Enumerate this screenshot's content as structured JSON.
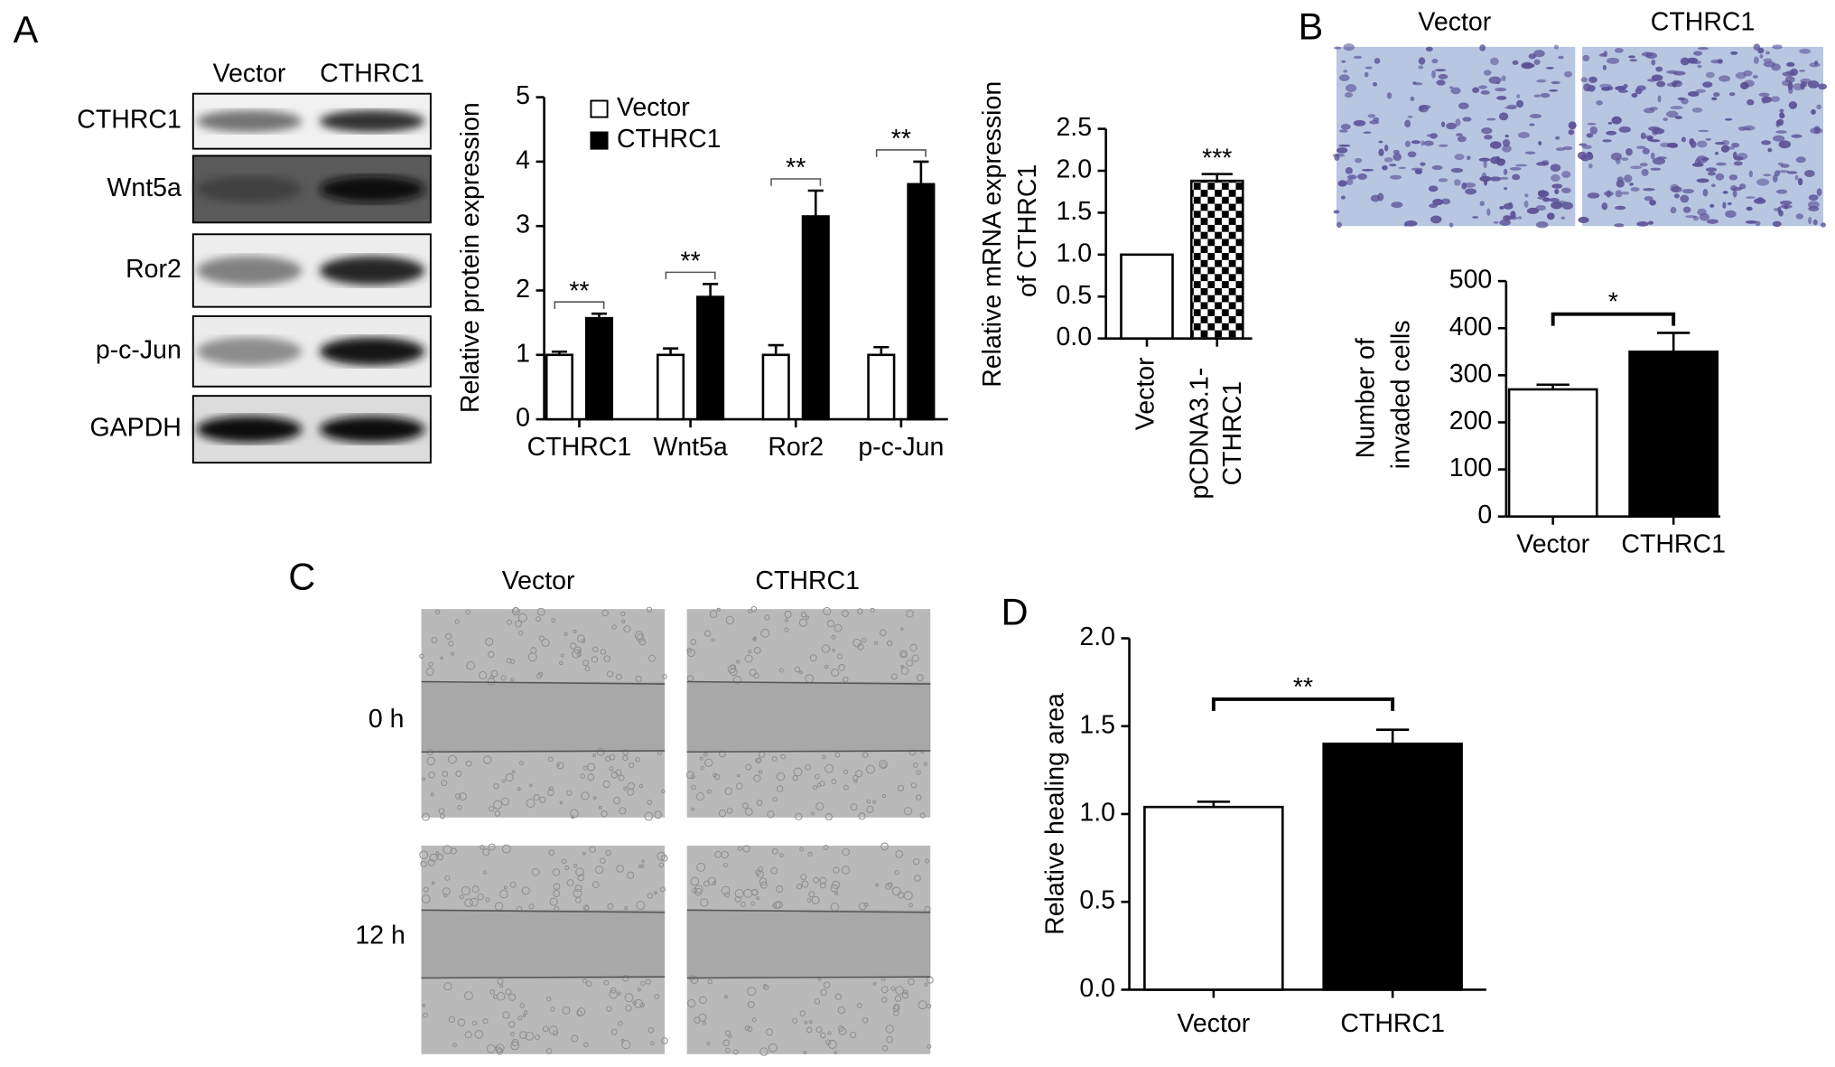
{
  "panel_labels": [
    "A",
    "B",
    "C",
    "D"
  ],
  "blot": {
    "columns": [
      "Vector",
      "CTHRC1"
    ],
    "rows": [
      "CTHRC1",
      "Wnt5a",
      "Ror2",
      "p-c-Jun",
      "GAPDH"
    ]
  },
  "invasion_images": {
    "columns": [
      "Vector",
      "CTHRC1"
    ]
  },
  "wound_images": {
    "columns": [
      "Vector",
      "CTHRC1"
    ],
    "rows": [
      "0 h",
      "12 h"
    ]
  },
  "chart_data": [
    {
      "type": "bar",
      "y_label": "Relative protein expression",
      "categories": [
        "CTHRC1",
        "Wnt5a",
        "Ror2",
        "p-c-Jun"
      ],
      "series": [
        {
          "name": "Vector",
          "color": "#ffffff",
          "values": [
            1,
            1,
            1,
            1
          ],
          "errors": [
            0.05,
            0.1,
            0.15,
            0.12
          ]
        },
        {
          "name": "CTHRC1",
          "color": "#000000",
          "values": [
            1.57,
            1.9,
            3.15,
            3.65
          ],
          "errors": [
            0.07,
            0.2,
            0.4,
            0.35
          ]
        }
      ],
      "annotations": [
        "**",
        "**",
        "**",
        "**"
      ],
      "ylim": [
        0,
        5
      ],
      "yticks": [
        0,
        1,
        2,
        3,
        4,
        5
      ],
      "legend": "top-left"
    },
    {
      "type": "bar",
      "y_label": "Relative mRNA expression of CTHRC1",
      "categories": [
        "Vector",
        "pCDNA3.1-CTHRC1"
      ],
      "values": [
        1,
        1.88
      ],
      "errors": [
        0,
        0.08
      ],
      "colors": [
        "#ffffff",
        "#000000"
      ],
      "patterns": [
        "none",
        "checkerboard"
      ],
      "annotations": [
        "***"
      ],
      "ylim": [
        0,
        2.5
      ],
      "yticks": [
        {
          "value": 0,
          "label": "0.0"
        },
        {
          "value": 0.5,
          "label": "0.5"
        },
        {
          "value": 1,
          "label": "1.0"
        },
        {
          "value": 1.5,
          "label": "1.5"
        },
        {
          "value": 2,
          "label": "2.0"
        },
        {
          "value": 2.5,
          "label": "2.5"
        }
      ]
    },
    {
      "type": "bar",
      "y_label": "Number of invaded cells",
      "categories": [
        "Vector",
        "CTHRC1"
      ],
      "values": [
        270,
        350
      ],
      "errors": [
        10,
        40
      ],
      "colors": [
        "#ffffff",
        "#000000"
      ],
      "patterns": [
        "none",
        "none"
      ],
      "annotations": [
        "*"
      ],
      "ylim": [
        0,
        500
      ],
      "yticks": [
        0,
        100,
        200,
        300,
        400,
        500
      ]
    },
    {
      "type": "bar",
      "y_label": "Relative healing area",
      "categories": [
        "Vector",
        "CTHRC1"
      ],
      "values": [
        1.04,
        1.4
      ],
      "errors": [
        0.03,
        0.08
      ],
      "colors": [
        "#ffffff",
        "#000000"
      ],
      "patterns": [
        "none",
        "none"
      ],
      "annotations": [
        "**"
      ],
      "ylim": [
        0,
        2
      ],
      "yticks": [
        {
          "value": 0,
          "label": "0.0"
        },
        {
          "value": 0.5,
          "label": "0.5"
        },
        {
          "value": 1,
          "label": "1.0"
        },
        {
          "value": 1.5,
          "label": "1.5"
        },
        {
          "value": 2,
          "label": "2.0"
        }
      ]
    }
  ]
}
